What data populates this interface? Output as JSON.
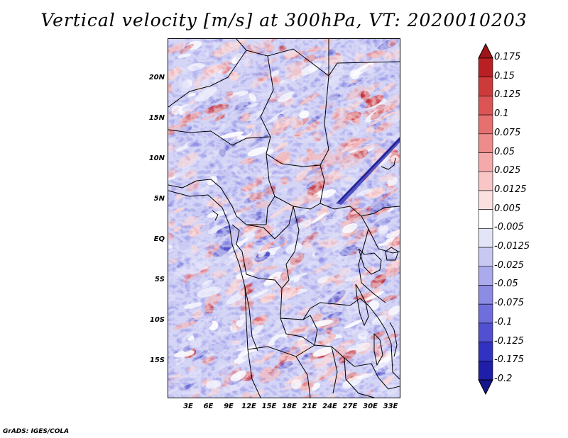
{
  "title": "Vertical velocity [m/s] at 300hPa, VT: 2020010203",
  "footer": "GrADS: IGES/COLA",
  "lat_ticks": [
    "20N",
    "15N",
    "10N",
    "5N",
    "EQ",
    "5S",
    "10S",
    "15S"
  ],
  "lon_ticks": [
    "3E",
    "6E",
    "9E",
    "12E",
    "15E",
    "18E",
    "21E",
    "24E",
    "27E",
    "30E",
    "33E"
  ],
  "colorbar": {
    "labels": [
      "0.175",
      "0.15",
      "0.125",
      "0.1",
      "0.075",
      "0.05",
      "0.025",
      "0.0125",
      "0.005",
      "-0.005",
      "-0.0125",
      "-0.025",
      "-0.05",
      "-0.075",
      "-0.1",
      "-0.125",
      "-0.175",
      "-0.2"
    ],
    "colors": [
      "#a01418",
      "#b82024",
      "#cc3a3a",
      "#dc5454",
      "#e67070",
      "#ee8c8c",
      "#f4aaaa",
      "#f8c6c6",
      "#fbe0e0",
      "#ffffff",
      "#e4e4f8",
      "#c8c8f2",
      "#aaaaec",
      "#8c8ce4",
      "#6e6edc",
      "#5050d0",
      "#3232c0",
      "#1e1ea8",
      "#14148c"
    ]
  },
  "field_colors": {
    "red_dark": "#c8282c",
    "red_mid": "#e8787a",
    "red_light": "#f4b4b4",
    "white": "#ffffff",
    "blue_light": "#c4c4f2",
    "blue_mid": "#8c8ce6",
    "blue_dark": "#4444c8"
  }
}
